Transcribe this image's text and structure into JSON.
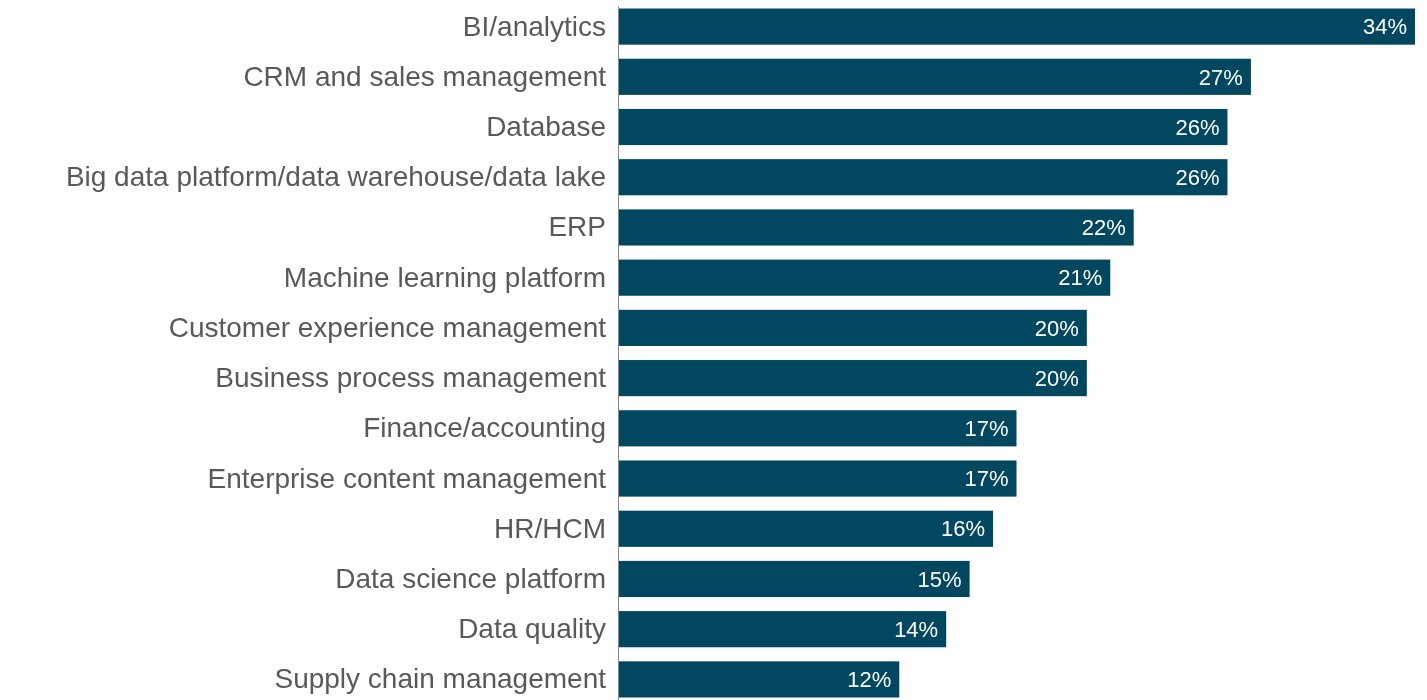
{
  "chart_data": {
    "type": "bar",
    "orientation": "horizontal",
    "categories": [
      "BI/analytics",
      "CRM and sales management",
      "Database",
      "Big data platform/data warehouse/data lake",
      "ERP",
      "Machine learning platform",
      "Customer experience management",
      "Business process management",
      "Finance/accounting",
      "Enterprise content management",
      "HR/HCM",
      "Data science platform",
      "Data quality",
      "Supply chain management"
    ],
    "values": [
      34,
      27,
      26,
      26,
      22,
      21,
      20,
      20,
      17,
      17,
      16,
      15,
      14,
      12
    ],
    "color": "#00475f",
    "data_labels": true,
    "value_labels": [
      "34%",
      "27%",
      "26%",
      "26%",
      "22%",
      "21%",
      "20%",
      "20%",
      "17%",
      "17%",
      "16%",
      "15%",
      "14%",
      "12%"
    ],
    "xlim": [
      0,
      34
    ],
    "tick_labels": "y"
  }
}
